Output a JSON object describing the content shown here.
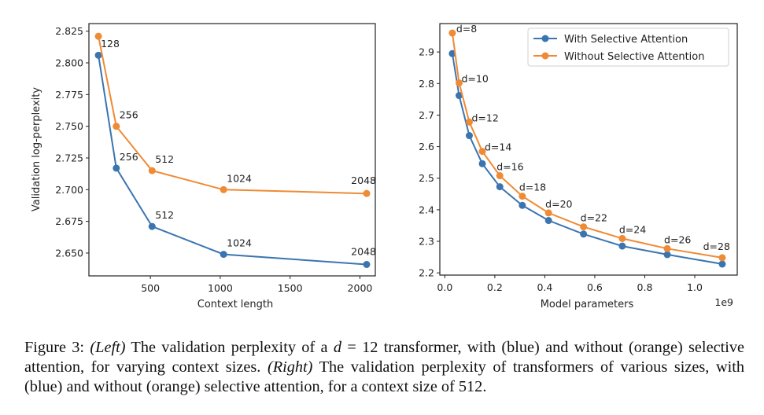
{
  "colors": {
    "blue": "#3a75b0",
    "orange": "#ef8a35",
    "axis": "#222222"
  },
  "chart_data": [
    {
      "type": "line",
      "xlabel": "Context length",
      "ylabel": "Validation log-perplexity",
      "xlim": [
        60,
        2110
      ],
      "ylim": [
        2.632,
        2.831
      ],
      "xticks": [
        500,
        1000,
        1500,
        2000
      ],
      "xtick_labels": [
        "500",
        "1000",
        "1500",
        "2000"
      ],
      "yticks": [
        2.65,
        2.675,
        2.7,
        2.725,
        2.75,
        2.775,
        2.8,
        2.825
      ],
      "ytick_labels": [
        "2.650",
        "2.675",
        "2.700",
        "2.725",
        "2.750",
        "2.775",
        "2.800",
        "2.825"
      ],
      "grid": false,
      "series": [
        {
          "name": "With Selective Attention",
          "color": "blue",
          "x": [
            128,
            256,
            512,
            1024,
            2048
          ],
          "y": [
            2.806,
            2.717,
            2.671,
            2.649,
            2.641
          ],
          "labels": [
            "",
            "256",
            "512",
            "1024",
            "2048"
          ]
        },
        {
          "name": "Without Selective Attention",
          "color": "orange",
          "x": [
            128,
            256,
            512,
            1024,
            2048
          ],
          "y": [
            2.821,
            2.75,
            2.715,
            2.7,
            2.697
          ],
          "labels": [
            "128",
            "256",
            "512",
            "1024",
            "2048"
          ]
        }
      ]
    },
    {
      "type": "line",
      "xlabel": "Model parameters",
      "x_offset_label": "1e9",
      "ylabel": "",
      "xlim": [
        -0.02,
        1.17
      ],
      "ylim": [
        2.193,
        2.99
      ],
      "xticks": [
        0.0,
        0.2,
        0.4,
        0.6,
        0.8,
        1.0
      ],
      "xtick_labels": [
        "0.0",
        "0.2",
        "0.4",
        "0.6",
        "0.8",
        "1.0"
      ],
      "yticks": [
        2.2,
        2.3,
        2.4,
        2.5,
        2.6,
        2.7,
        2.8,
        2.9
      ],
      "ytick_labels": [
        "2.2",
        "2.3",
        "2.4",
        "2.5",
        "2.6",
        "2.7",
        "2.8",
        "2.9"
      ],
      "grid": false,
      "legend": {
        "placement": "top-right",
        "entries": [
          "With Selective Attention",
          "Without Selective Attention"
        ]
      },
      "series": [
        {
          "name": "With Selective Attention",
          "color": "blue",
          "x": [
            0.03,
            0.057,
            0.098,
            0.15,
            0.22,
            0.31,
            0.415,
            0.555,
            0.71,
            0.89,
            1.11
          ],
          "y": [
            2.895,
            2.762,
            2.635,
            2.546,
            2.473,
            2.414,
            2.366,
            2.323,
            2.285,
            2.258,
            2.228
          ]
        },
        {
          "name": "Without Selective Attention",
          "color": "orange",
          "x": [
            0.03,
            0.057,
            0.098,
            0.15,
            0.22,
            0.31,
            0.415,
            0.555,
            0.71,
            0.89,
            1.11
          ],
          "y": [
            2.96,
            2.802,
            2.678,
            2.585,
            2.508,
            2.443,
            2.39,
            2.346,
            2.309,
            2.277,
            2.248
          ],
          "labels": [
            "d=8",
            "d=10",
            "d=12",
            "d=14",
            "d=16",
            "d=18",
            "d=20",
            "d=22",
            "d=24",
            "d=26",
            "d=28"
          ]
        }
      ]
    }
  ],
  "caption": {
    "prefix": "Figure 3: ",
    "left_tag": "(Left)",
    "part1": " The validation perplexity of a ",
    "math_var": "d",
    "math_rest": " = 12",
    "part2": " transformer, with (blue) and without (orange) selective attention, for varying context sizes. ",
    "right_tag": "(Right)",
    "part3": " The validation perplexity of transformers of various sizes, with (blue) and without (orange) selective attention, for a context size of 512."
  }
}
